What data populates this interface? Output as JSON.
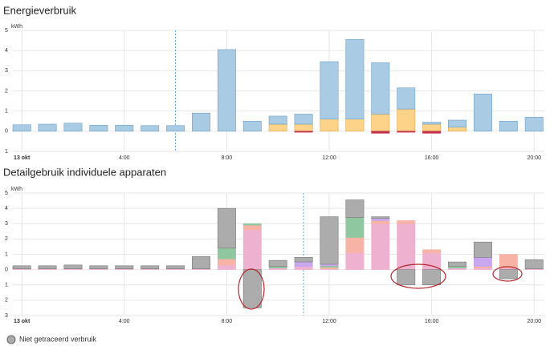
{
  "chart_data": [
    {
      "type": "bar",
      "title": "Energieverbruik",
      "y_unit": "kWh",
      "x": [
        0,
        1,
        2,
        3,
        4,
        5,
        6,
        7,
        8,
        9,
        10,
        11,
        12,
        13,
        14,
        15,
        16,
        17,
        18,
        19,
        20
      ],
      "xlim": [
        -0.35,
        20.4
      ],
      "xticks": [
        {
          "value": 0,
          "label": "13 okt"
        },
        {
          "value": 4,
          "label": "4:00"
        },
        {
          "value": 8,
          "label": "8:00"
        },
        {
          "value": 12,
          "label": "12:00"
        },
        {
          "value": 16,
          "label": "16:00"
        },
        {
          "value": 20,
          "label": "20:00"
        }
      ],
      "ylim": [
        -1,
        5
      ],
      "yticks": [
        {
          "value": -1,
          "label": "1"
        },
        0,
        1,
        2,
        3,
        4,
        5
      ],
      "grid": true,
      "marker_x": 6,
      "series": [
        {
          "color": "#fdd38a",
          "values": [
            0,
            0,
            0,
            0,
            0,
            0,
            0,
            0,
            0,
            0,
            0.35,
            0.35,
            0.6,
            0.6,
            0.85,
            1.1,
            0.35,
            0.2,
            0,
            0,
            0
          ]
        },
        {
          "color": "#a9cbe4",
          "values": [
            0.32,
            0.35,
            0.4,
            0.3,
            0.3,
            0.28,
            0.28,
            0.9,
            4.05,
            0.5,
            0.4,
            0.5,
            2.85,
            3.95,
            2.55,
            1.05,
            0.1,
            0.35,
            1.85,
            0.5,
            0.7
          ]
        },
        {
          "color": "#c0304a",
          "values": [
            0,
            0,
            0,
            0,
            0,
            0,
            0,
            0,
            0,
            0,
            0,
            -0.05,
            0,
            0,
            -0.1,
            -0.05,
            -0.1,
            0,
            0,
            0,
            0
          ]
        }
      ]
    },
    {
      "type": "bar",
      "title": "Detailgebruik individuele apparaten",
      "y_unit": "kWh",
      "x": [
        0,
        1,
        2,
        3,
        4,
        5,
        6,
        7,
        8,
        9,
        10,
        11,
        12,
        13,
        14,
        15,
        16,
        17,
        18,
        19,
        20
      ],
      "xlim": [
        -0.35,
        20.4
      ],
      "xticks": [
        {
          "value": 0,
          "label": "13 okt"
        },
        {
          "value": 4,
          "label": "4:00"
        },
        {
          "value": 8,
          "label": "8:00"
        },
        {
          "value": 12,
          "label": "12:00"
        },
        {
          "value": 16,
          "label": "16:00"
        },
        {
          "value": 20,
          "label": "20:00"
        }
      ],
      "ylim": [
        -3,
        5
      ],
      "yticks": [
        {
          "value": -3,
          "label": "3"
        },
        {
          "value": -2,
          "label": "2"
        },
        {
          "value": -1,
          "label": "1"
        },
        0,
        1,
        2,
        3,
        4,
        5
      ],
      "grid": true,
      "marker_x": 11,
      "series": [
        {
          "color": "#eeb1cf",
          "values": [
            0.05,
            0.05,
            0.05,
            0.05,
            0.05,
            0.05,
            0.05,
            0.05,
            0.3,
            2.6,
            0.1,
            0.2,
            0.05,
            1.1,
            3.0,
            3.0,
            1.1,
            0.1,
            0.1,
            0.1,
            0.05
          ]
        },
        {
          "color": "#f7b3a6",
          "values": [
            0,
            0,
            0,
            0,
            0,
            0,
            0,
            0,
            0.4,
            0.3,
            0,
            0,
            0.1,
            1.0,
            0.2,
            0.2,
            0.2,
            0,
            0.1,
            0.9,
            0
          ]
        },
        {
          "color": "#8fc7a0",
          "values": [
            0,
            0,
            0,
            0,
            0,
            0,
            0,
            0,
            0.7,
            0.1,
            0.1,
            0,
            0.1,
            1.3,
            0,
            0,
            0,
            0.1,
            0,
            0,
            0
          ]
        },
        {
          "color": "#c9a7ee",
          "values": [
            0,
            0,
            0,
            0,
            0,
            0,
            0,
            0,
            0,
            0,
            0,
            0.3,
            0.1,
            0,
            0.15,
            0,
            0,
            0,
            0.6,
            0,
            0
          ]
        },
        {
          "name": "Niet getraceerd verbruik",
          "color": "#acacac",
          "values": [
            0.2,
            0.2,
            0.25,
            0.2,
            0.2,
            0.2,
            0.2,
            0.8,
            2.6,
            -2.5,
            0.4,
            0.3,
            3.1,
            1.15,
            0.1,
            -1.0,
            -1.0,
            0.3,
            1.0,
            -0.6,
            0.6
          ]
        }
      ]
    }
  ]
}
